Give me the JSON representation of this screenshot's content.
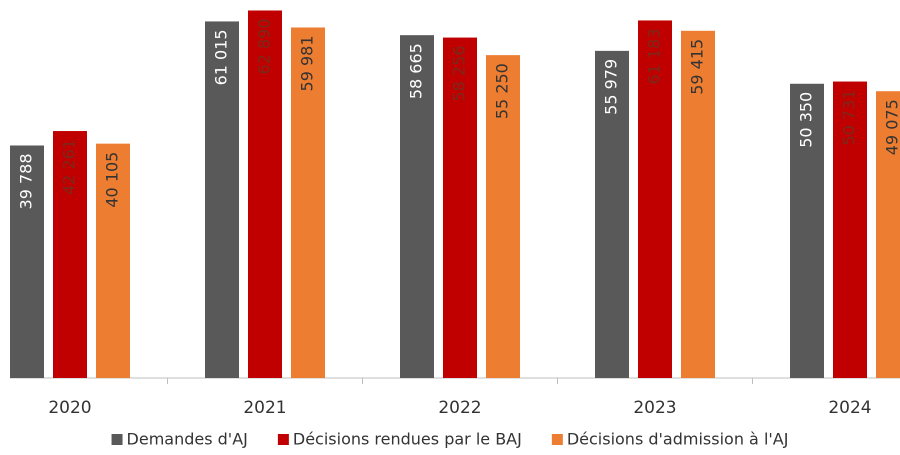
{
  "chart_data": {
    "type": "bar",
    "categories": [
      "2020",
      "2021",
      "2022",
      "2023",
      "2024"
    ],
    "series": [
      {
        "name": "Demandes d'AJ",
        "color": "#595959",
        "values": [
          39788,
          61015,
          58665,
          55979,
          50350
        ],
        "value_labels": [
          "39 788",
          "61 015",
          "58 665",
          "55 979",
          "50 350"
        ]
      },
      {
        "name": "Décisions rendues par le BAJ",
        "color": "#c00000",
        "values": [
          42261,
          62890,
          58256,
          61183,
          50731
        ],
        "value_labels": [
          "42 261",
          "62 890",
          "58 256",
          "61 183",
          "50 731"
        ]
      },
      {
        "name": "Décisions d'admission à l'AJ",
        "color": "#ed7d31",
        "values": [
          40105,
          59981,
          55250,
          59415,
          49075
        ],
        "value_labels": [
          "40 105",
          "59 981",
          "55 250",
          "59 415",
          "49 075"
        ]
      }
    ],
    "ylim": [
      0,
      64000
    ],
    "legend": "bottom"
  }
}
